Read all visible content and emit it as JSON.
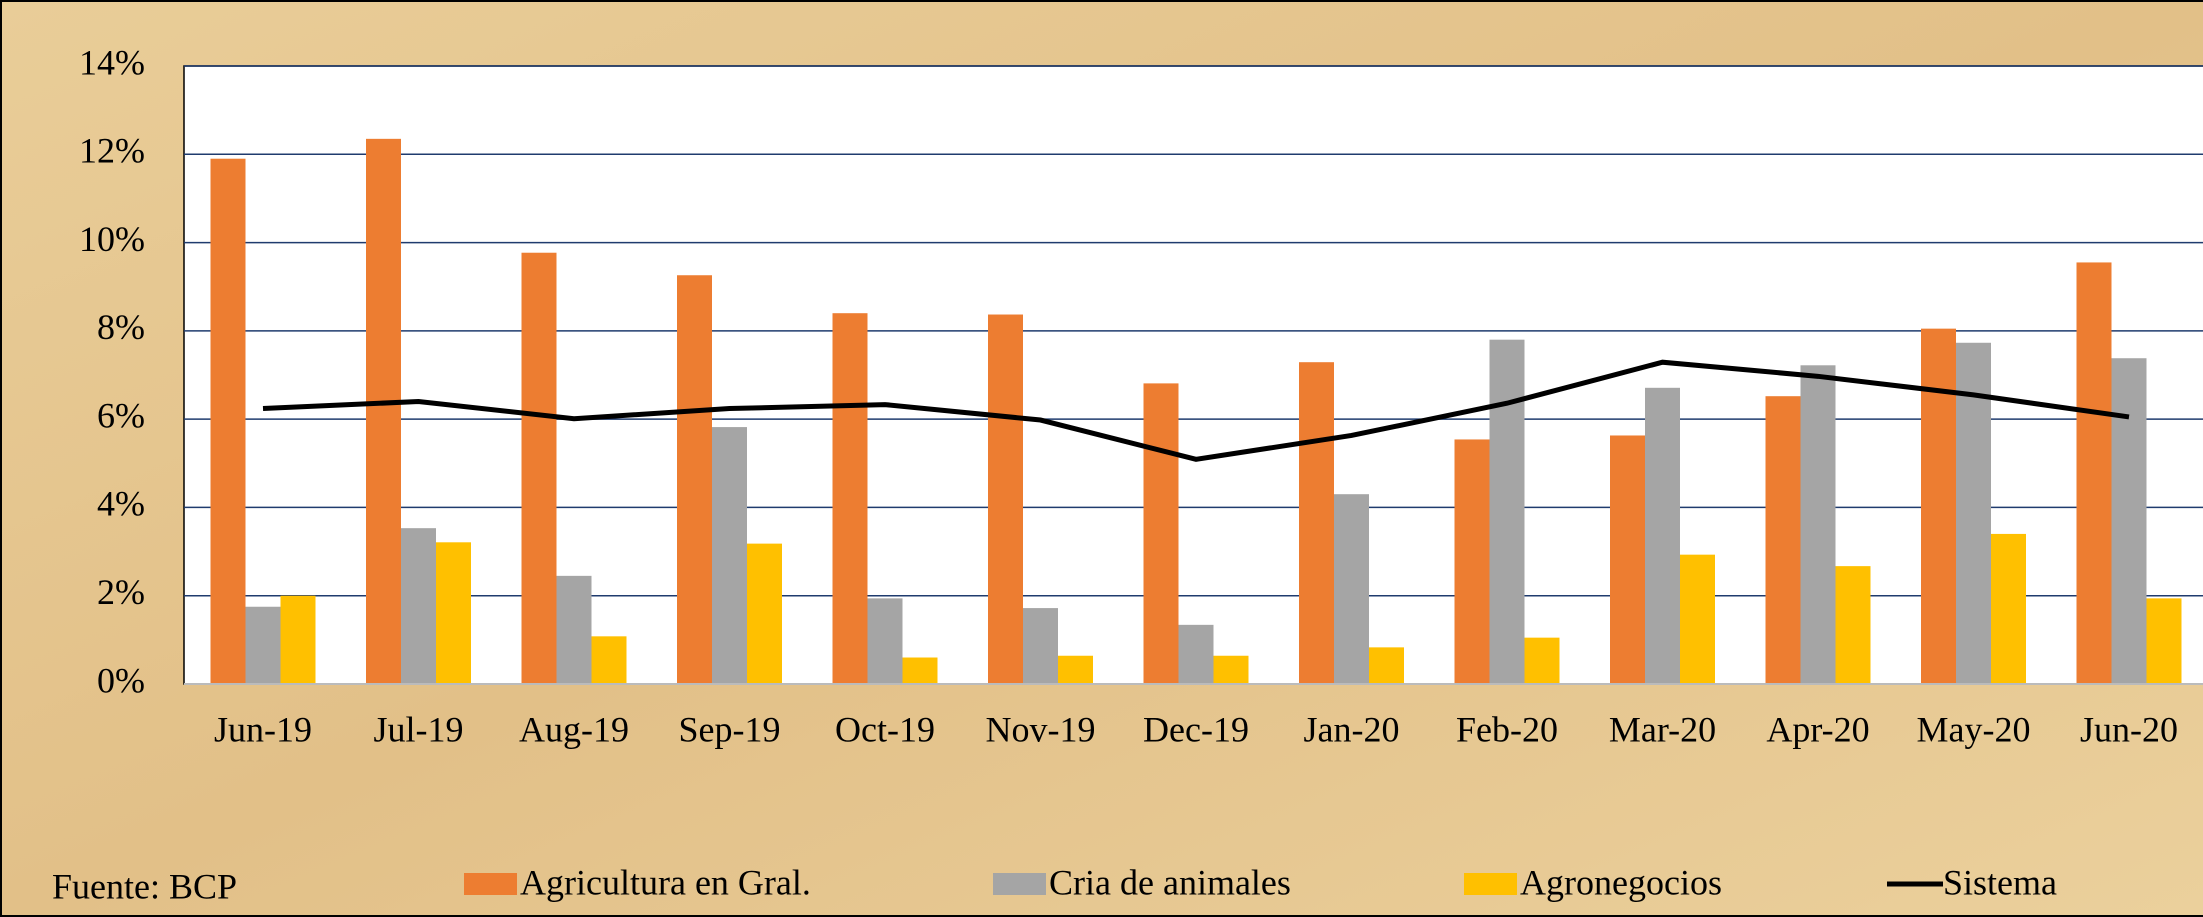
{
  "chart_data": {
    "type": "bar",
    "source": "Fuente: BCP",
    "categories": [
      "Jun-19",
      "Jul-19",
      "Aug-19",
      "Sep-19",
      "Oct-19",
      "Nov-19",
      "Dec-19",
      "Jan-20",
      "Feb-20",
      "Mar-20",
      "Apr-20",
      "May-20",
      "Jun-20"
    ],
    "series": [
      {
        "name": "Agricultura en Gral.",
        "color": "#ed7d31",
        "type": "bar",
        "values": [
          11.9,
          12.35,
          9.77,
          9.26,
          8.4,
          8.37,
          6.81,
          7.29,
          5.54,
          5.63,
          6.52,
          8.05,
          9.55
        ]
      },
      {
        "name": "Cria de animales",
        "color": "#a5a5a5",
        "type": "bar",
        "values": [
          1.75,
          3.53,
          2.45,
          5.82,
          1.94,
          1.72,
          1.34,
          4.3,
          7.8,
          6.71,
          7.22,
          7.73,
          7.38
        ]
      },
      {
        "name": "Agronegocios",
        "color": "#ffc000",
        "type": "bar",
        "values": [
          2.0,
          3.21,
          1.08,
          3.18,
          0.6,
          0.64,
          0.64,
          0.83,
          1.05,
          2.93,
          2.67,
          3.4,
          1.94
        ]
      },
      {
        "name": "Sistema",
        "color": "#000000",
        "type": "line",
        "values": [
          6.24,
          6.4,
          6.01,
          6.24,
          6.33,
          5.98,
          5.09,
          5.63,
          6.36,
          7.29,
          6.97,
          6.55,
          6.05
        ]
      }
    ],
    "ylim": [
      0,
      14
    ],
    "yticks": [
      {
        "value": 0,
        "label": "0%"
      },
      {
        "value": 2,
        "label": "2%"
      },
      {
        "value": 4,
        "label": "4%"
      },
      {
        "value": 6,
        "label": "6%"
      },
      {
        "value": 8,
        "label": "8%"
      },
      {
        "value": 10,
        "label": "10%"
      },
      {
        "value": 12,
        "label": "12%"
      },
      {
        "value": 14,
        "label": "14%"
      }
    ],
    "grid": true,
    "legend": "bottom"
  }
}
